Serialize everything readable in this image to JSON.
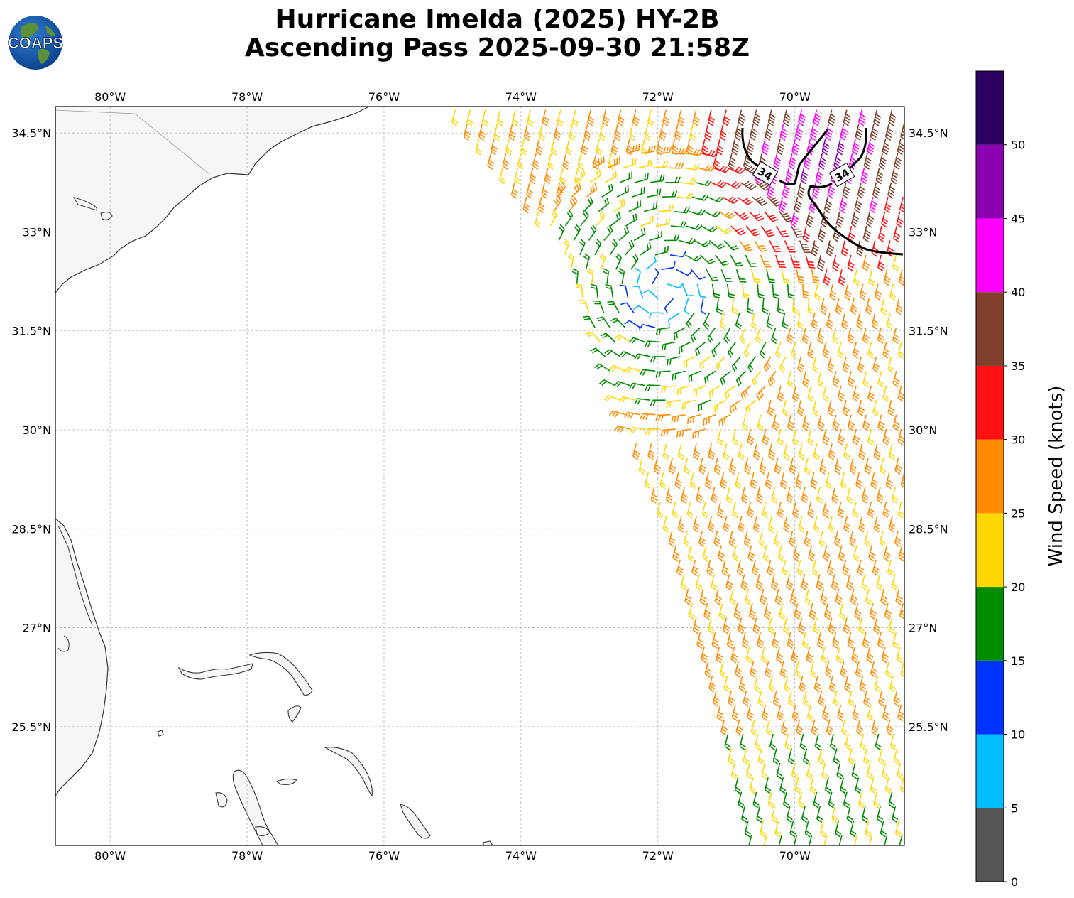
{
  "header": {
    "title_line1": "Hurricane Imelda (2025) HY-2B",
    "title_line2": "Ascending Pass 2025-09-30 21:58Z",
    "logo_text": "COAPS"
  },
  "map": {
    "projection": "plate-carree",
    "lon_range": [
      -80.8,
      -68.4
    ],
    "lat_range": [
      23.7,
      34.9
    ],
    "grid": true,
    "lon_ticks": [
      -80,
      -78,
      -76,
      -74,
      -72,
      -70
    ],
    "lat_ticks": [
      34.5,
      33,
      31.5,
      30,
      28.5,
      27,
      25.5
    ],
    "lon_tick_labels": [
      "80°W",
      "78°W",
      "76°W",
      "74°W",
      "72°W",
      "70°W"
    ],
    "lat_tick_labels": [
      "34.5°N",
      "33°N",
      "31.5°N",
      "30°N",
      "28.5°N",
      "27°N",
      "25.5°N"
    ],
    "contour_label": "34",
    "contour_level_kt": 34,
    "storm_center": {
      "lon": -71.9,
      "lat": 32.1
    },
    "swath_west_edge": [
      [
        -75.0,
        34.9
      ],
      [
        -73.5,
        33.0
      ],
      [
        -72.9,
        31.5
      ],
      [
        -72.4,
        30.0
      ],
      [
        -71.8,
        28.5
      ],
      [
        -71.4,
        27.0
      ],
      [
        -71.0,
        25.5
      ],
      [
        -70.6,
        23.7
      ]
    ],
    "land_colors": {
      "land": "#f6f6f6",
      "ocean": "#ffffff",
      "coast": "#333333"
    }
  },
  "colorbar": {
    "label": "Wind Speed (knots)",
    "bounds": [
      0,
      5,
      10,
      15,
      20,
      25,
      30,
      35,
      40,
      45,
      50,
      55
    ],
    "tick_labels": [
      "0",
      "5",
      "10",
      "15",
      "20",
      "25",
      "30",
      "35",
      "40",
      "45",
      "50"
    ],
    "colors": [
      "#555555",
      "#00bfff",
      "#0033ff",
      "#008c00",
      "#ffd700",
      "#ff8c00",
      "#ff1111",
      "#7f3f2a",
      "#ff00ff",
      "#8b00b0",
      "#2b0060"
    ]
  }
}
